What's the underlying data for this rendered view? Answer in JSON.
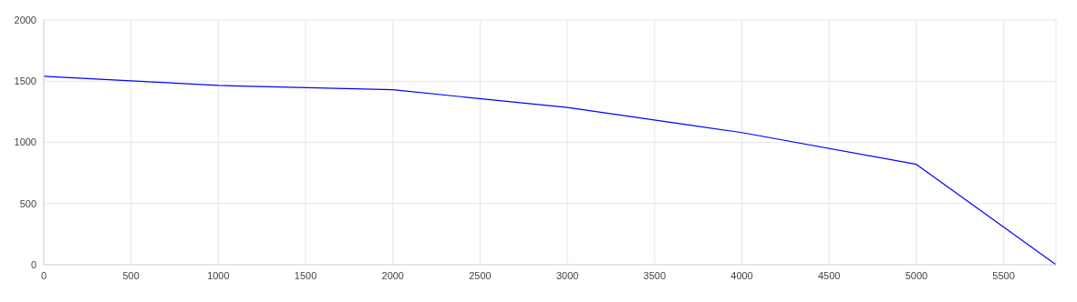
{
  "chart_data": {
    "type": "line",
    "x": [
      0,
      1000,
      2000,
      3000,
      4000,
      5000,
      5800
    ],
    "series": [
      {
        "color": "#0000ff",
        "values": [
          1540,
          1465,
          1430,
          1285,
          1080,
          820,
          0
        ]
      }
    ],
    "xlim": [
      0,
      5800
    ],
    "xticks": [
      0,
      500,
      1000,
      1500,
      2000,
      2500,
      3000,
      3500,
      4000,
      4500,
      5000,
      5500
    ],
    "ylim": [
      0,
      2000
    ],
    "yticks": [
      0,
      500,
      1000,
      1500,
      2000
    ],
    "grid": true,
    "legend": false,
    "marker": "none",
    "line_style": "solid"
  }
}
